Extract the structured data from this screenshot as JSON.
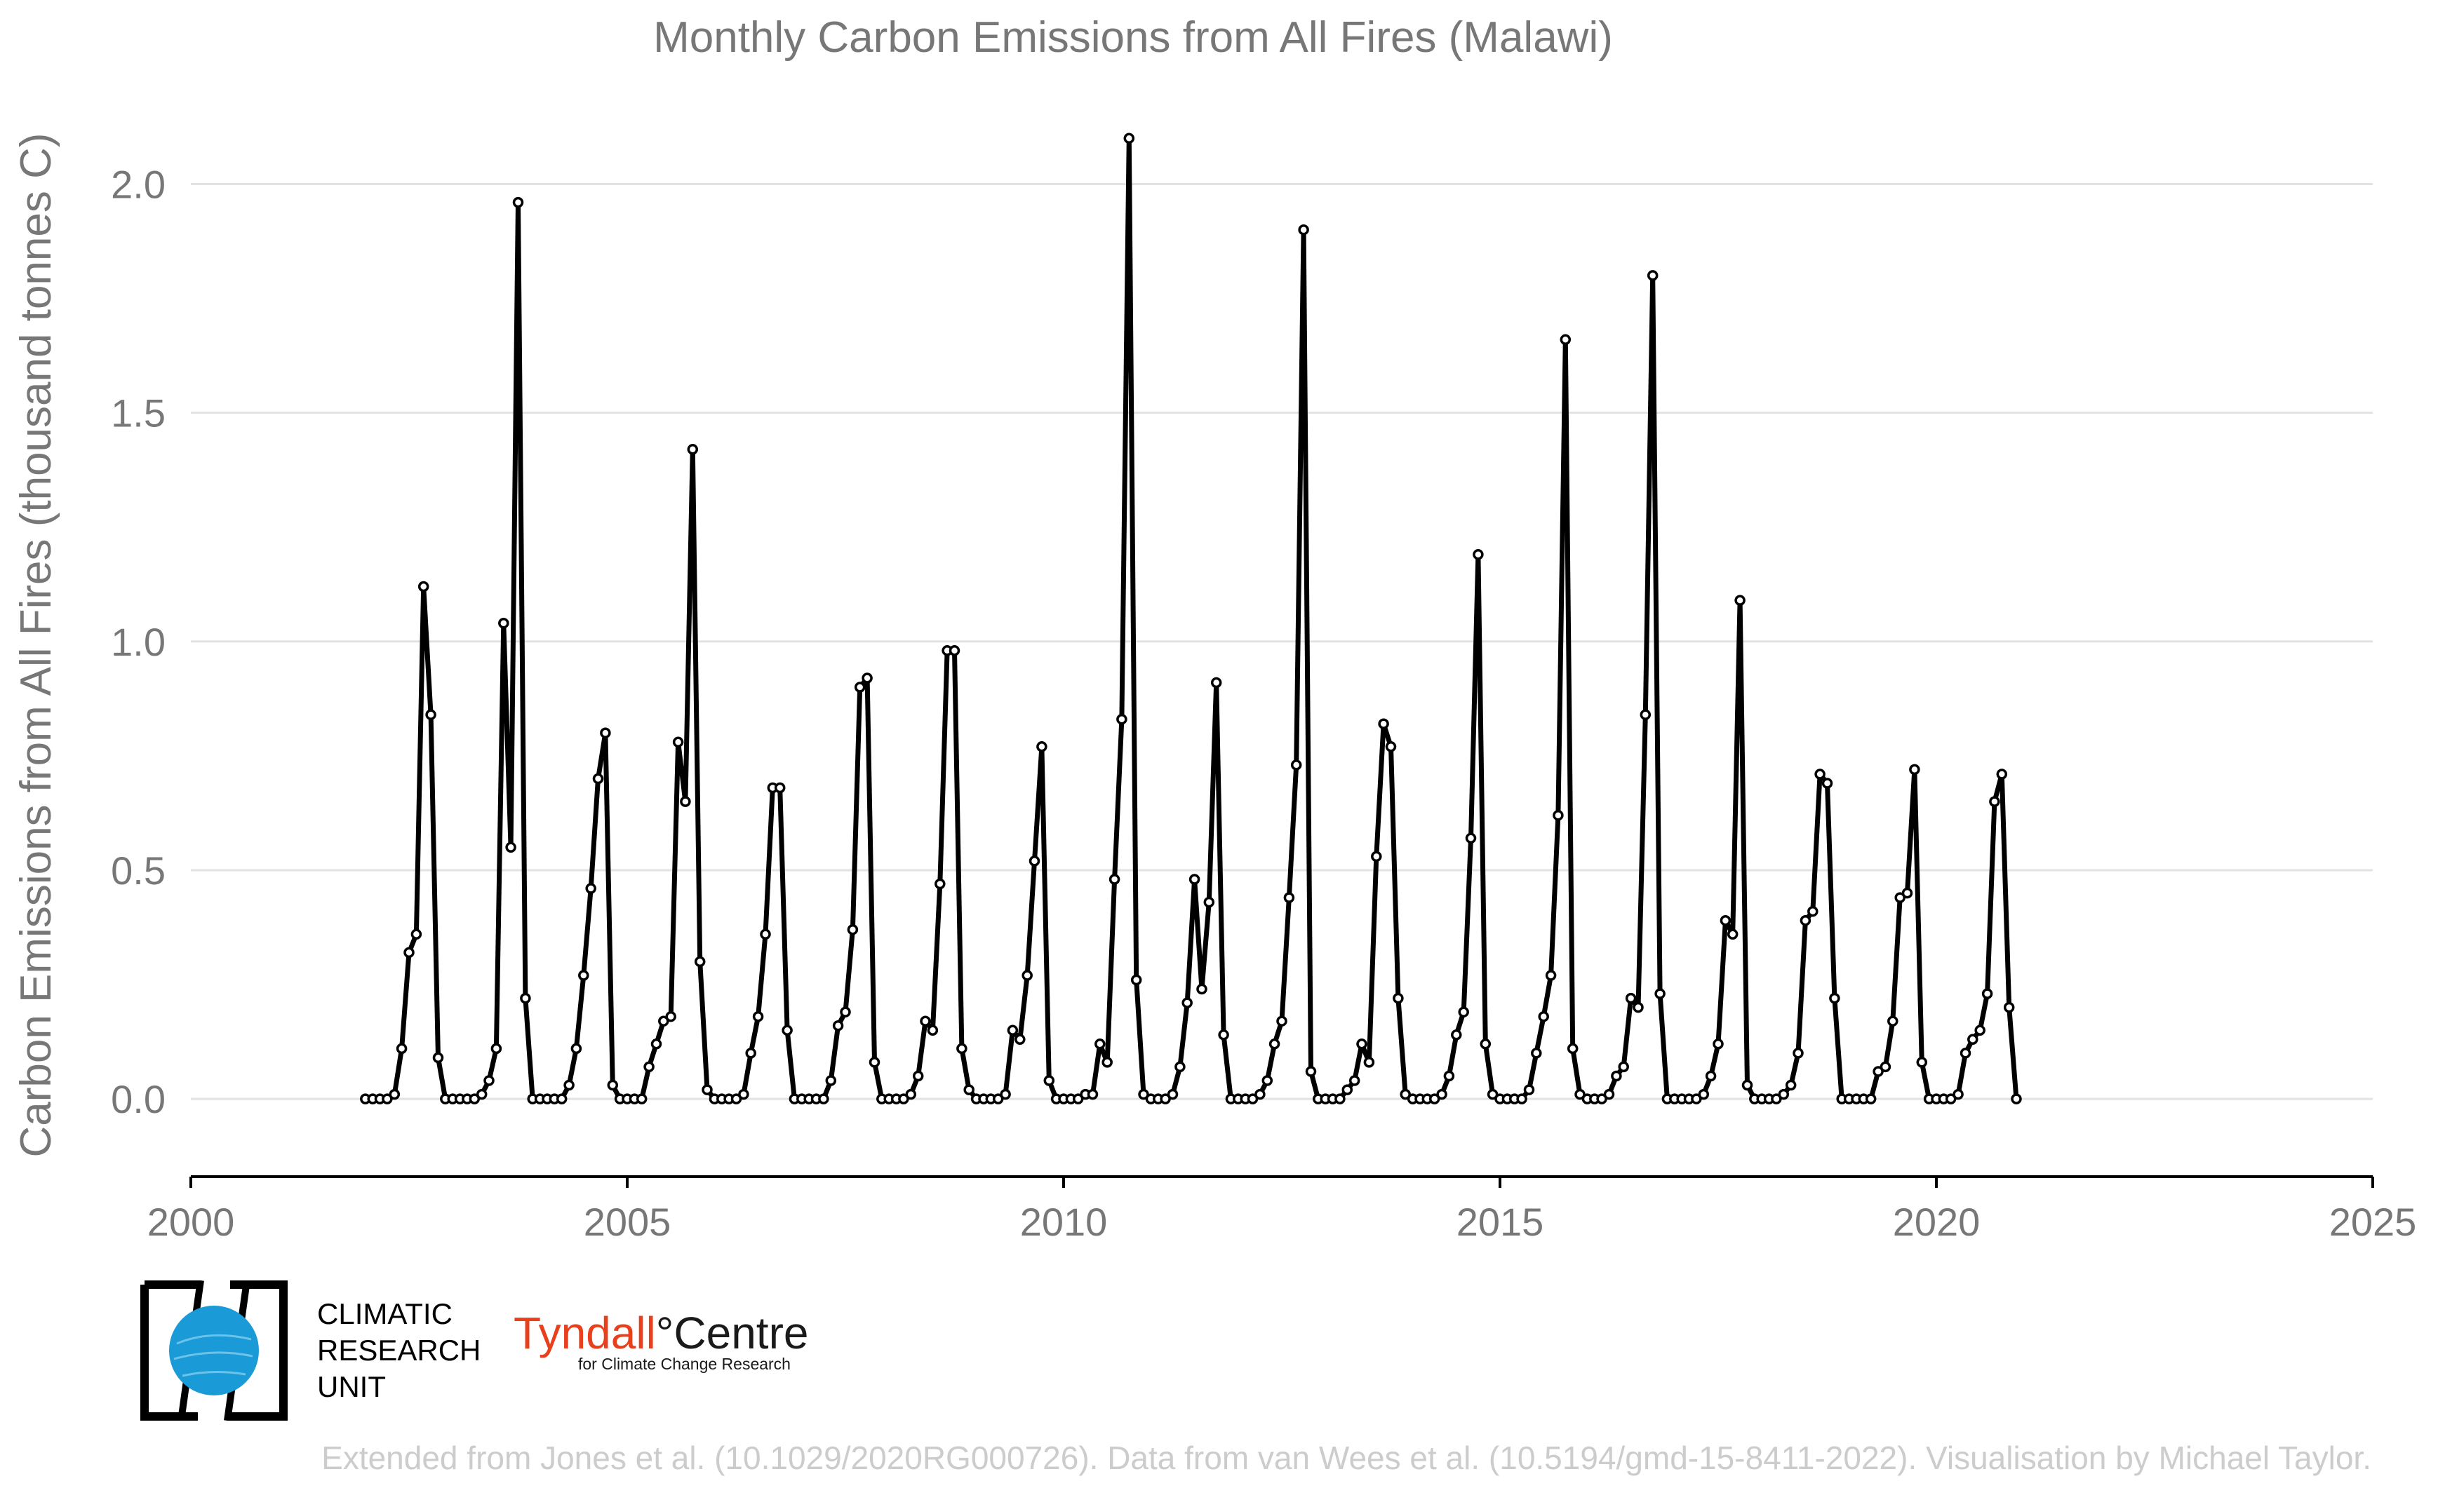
{
  "chart_data": {
    "type": "line",
    "title": "Monthly Carbon Emissions from All Fires (Malawi)",
    "ylabel": "Carbon Emissions from All Fires (thousand tonnes C)",
    "xlabel": "",
    "xlim": [
      2000,
      2025
    ],
    "ylim": [
      -0.17,
      2.2
    ],
    "x_ticks": [
      "2000",
      "2005",
      "2010",
      "2015",
      "2020",
      "2025"
    ],
    "y_ticks": [
      "0.0",
      "0.5",
      "1.0",
      "1.5",
      "2.0"
    ],
    "grid": "horizontal",
    "x_start": "2002-01",
    "x_step": "1 month",
    "series": [
      {
        "values": [
          0.0,
          0.0,
          0.0,
          0.0,
          0.01,
          0.11,
          0.32,
          0.36,
          1.12,
          0.84,
          0.09,
          0.0,
          0.0,
          0.0,
          0.0,
          0.0,
          0.01,
          0.04,
          0.11,
          1.04,
          0.55,
          1.96,
          0.22,
          0.0,
          0.0,
          0.0,
          0.0,
          0.0,
          0.03,
          0.11,
          0.27,
          0.46,
          0.7,
          0.8,
          0.03,
          0.0,
          0.0,
          0.0,
          0.0,
          0.07,
          0.12,
          0.17,
          0.18,
          0.78,
          0.65,
          1.42,
          0.3,
          0.02,
          0.0,
          0.0,
          0.0,
          0.0,
          0.01,
          0.1,
          0.18,
          0.36,
          0.68,
          0.68,
          0.15,
          0.0,
          0.0,
          0.0,
          0.0,
          0.0,
          0.04,
          0.16,
          0.19,
          0.37,
          0.9,
          0.92,
          0.08,
          0.0,
          0.0,
          0.0,
          0.0,
          0.01,
          0.05,
          0.17,
          0.15,
          0.47,
          0.98,
          0.98,
          0.11,
          0.02,
          0.0,
          0.0,
          0.0,
          0.0,
          0.01,
          0.15,
          0.13,
          0.27,
          0.52,
          0.77,
          0.04,
          0.0,
          0.0,
          0.0,
          0.0,
          0.01,
          0.01,
          0.12,
          0.08,
          0.48,
          0.83,
          2.1,
          0.26,
          0.01,
          0.0,
          0.0,
          0.0,
          0.01,
          0.07,
          0.21,
          0.48,
          0.24,
          0.43,
          0.91,
          0.14,
          0.0,
          0.0,
          0.0,
          0.0,
          0.01,
          0.04,
          0.12,
          0.17,
          0.44,
          0.73,
          1.9,
          0.06,
          0.0,
          0.0,
          0.0,
          0.0,
          0.02,
          0.04,
          0.12,
          0.08,
          0.53,
          0.82,
          0.77,
          0.22,
          0.01,
          0.0,
          0.0,
          0.0,
          0.0,
          0.01,
          0.05,
          0.14,
          0.19,
          0.57,
          1.19,
          0.12,
          0.01,
          0.0,
          0.0,
          0.0,
          0.0,
          0.02,
          0.1,
          0.18,
          0.27,
          0.62,
          1.66,
          0.11,
          0.01,
          0.0,
          0.0,
          0.0,
          0.01,
          0.05,
          0.07,
          0.22,
          0.2,
          0.84,
          1.8,
          0.23,
          0.0,
          0.0,
          0.0,
          0.0,
          0.0,
          0.01,
          0.05,
          0.12,
          0.39,
          0.36,
          1.09,
          0.03,
          0.0,
          0.0,
          0.0,
          0.0,
          0.01,
          0.03,
          0.1,
          0.39,
          0.41,
          0.71,
          0.69,
          0.22,
          0.0,
          0.0,
          0.0,
          0.0,
          0.0,
          0.06,
          0.07,
          0.17,
          0.44,
          0.45,
          0.72,
          0.08,
          0.0,
          0.0,
          0.0,
          0.0,
          0.01,
          0.1,
          0.13,
          0.15,
          0.23,
          0.65,
          0.71,
          0.2,
          0.0
        ]
      }
    ]
  },
  "logos": {
    "cru_lines": [
      "CLIMATIC",
      "RESEARCH",
      "UNIT"
    ],
    "cru_color": "#1a9ad6",
    "tyndall_name": "Tyndall",
    "tyndall_degree": "°",
    "tyndall_centre": "Centre",
    "tyndall_sub": "for Climate Change Research",
    "tyndall_color": "#e8401c"
  },
  "caption": "Extended from Jones et al. (10.1029/2020RG000726). Data from van Wees et al. (10.5194/gmd-15-8411-2022). Visualisation by Michael Taylor."
}
